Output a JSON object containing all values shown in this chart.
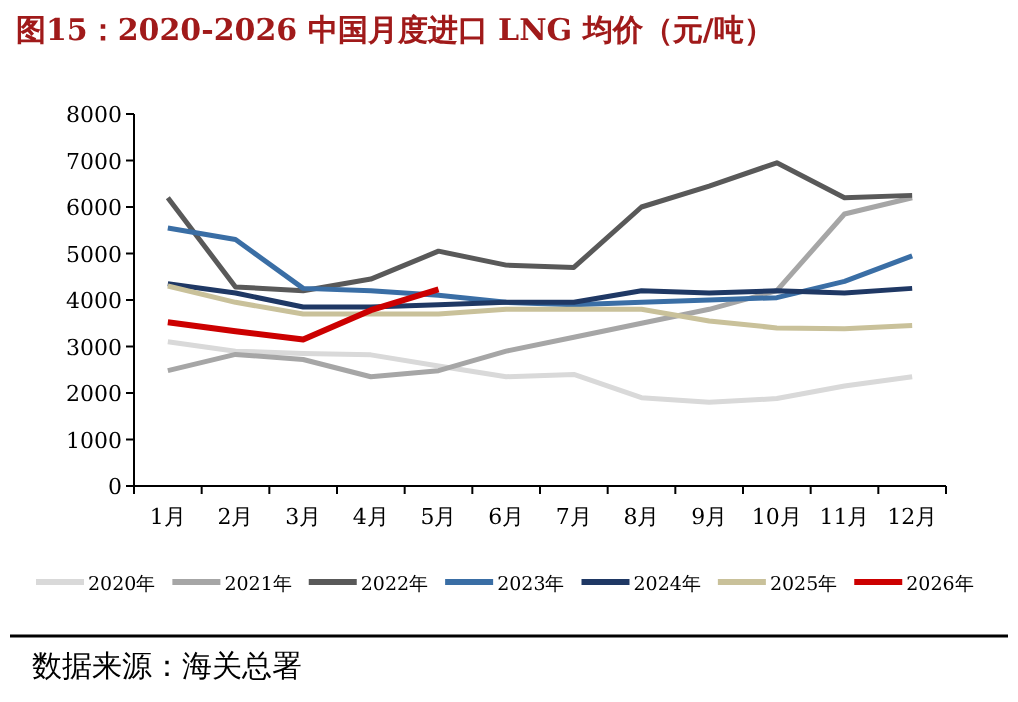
{
  "chart_data": {
    "type": "line",
    "title": "图15：2020-2026 中国月度进口 LNG 均价（元/吨）",
    "categories": [
      "1月",
      "2月",
      "3月",
      "4月",
      "5月",
      "6月",
      "7月",
      "8月",
      "9月",
      "10月",
      "11月",
      "12月"
    ],
    "ylim": [
      0,
      8000
    ],
    "yticks": [
      0,
      1000,
      2000,
      3000,
      4000,
      5000,
      6000,
      7000,
      8000
    ],
    "grid": false,
    "legend": "bottom",
    "marker": "none",
    "series": [
      {
        "name": "2020年",
        "color": "#d9d9d9",
        "values": [
          3100,
          2900,
          2850,
          2820,
          2580,
          2350,
          2400,
          1900,
          1800,
          1880,
          2150,
          2350
        ]
      },
      {
        "name": "2021年",
        "color": "#a6a6a6",
        "values": [
          2480,
          2830,
          2720,
          2350,
          2480,
          2900,
          3200,
          3500,
          3800,
          4200,
          5850,
          6200
        ]
      },
      {
        "name": "2022年",
        "color": "#595959",
        "values": [
          6200,
          4280,
          4200,
          4450,
          5050,
          4750,
          4700,
          6000,
          6450,
          6950,
          6200,
          6250
        ]
      },
      {
        "name": "2023年",
        "color": "#3a6ea5",
        "values": [
          5550,
          5300,
          4250,
          4200,
          4100,
          3950,
          3900,
          3950,
          4000,
          4050,
          4400,
          4950
        ]
      },
      {
        "name": "2024年",
        "color": "#1f3864",
        "values": [
          4350,
          4150,
          3850,
          3850,
          3900,
          3950,
          3950,
          4200,
          4150,
          4200,
          4150,
          4250
        ]
      },
      {
        "name": "2025年",
        "color": "#c9c19a",
        "values": [
          4300,
          3950,
          3700,
          3700,
          3700,
          3800,
          3800,
          3800,
          3550,
          3400,
          3380,
          3450
        ]
      },
      {
        "name": "2026年",
        "color": "#cc0000",
        "values": [
          3520,
          3330,
          3150,
          3780,
          4230,
          null,
          null,
          null,
          null,
          null,
          null,
          null
        ]
      }
    ],
    "annotations": [
      "数据来源：海关总署"
    ]
  }
}
